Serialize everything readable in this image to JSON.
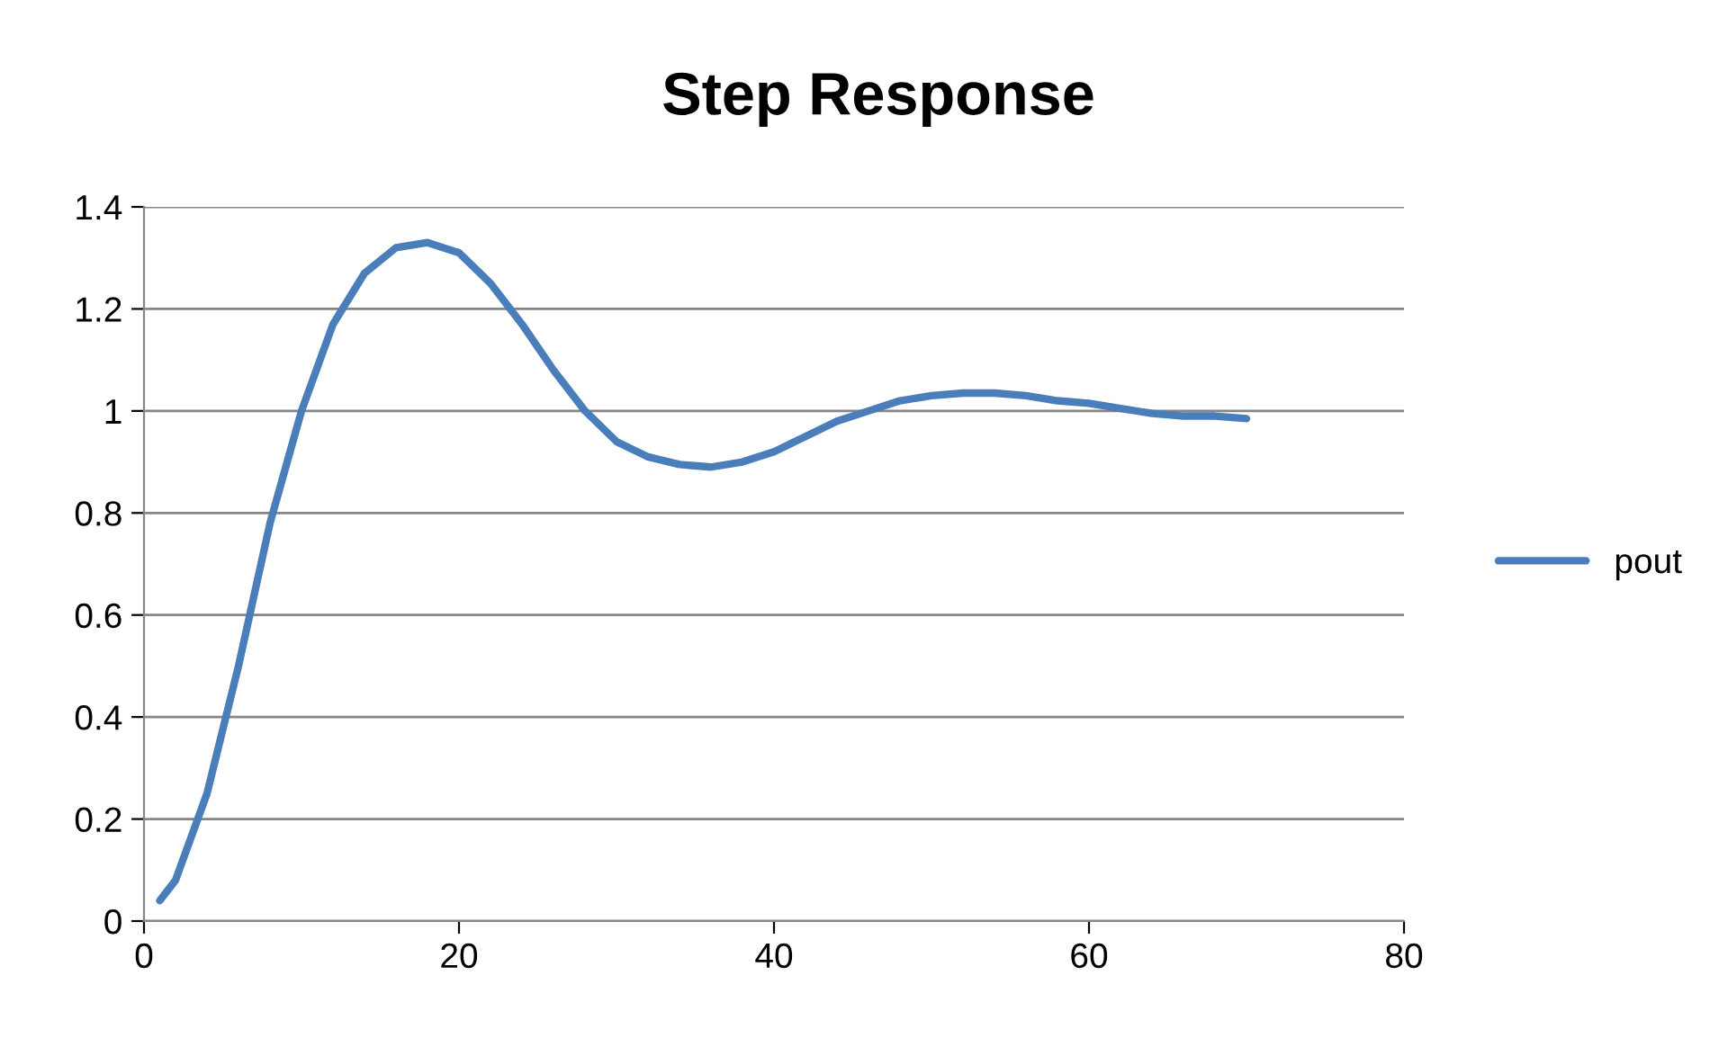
{
  "chart_data": {
    "type": "line",
    "title": "Step Response",
    "x": [
      1,
      2,
      4,
      6,
      8,
      10,
      12,
      14,
      16,
      18,
      20,
      22,
      24,
      26,
      28,
      30,
      32,
      34,
      36,
      38,
      40,
      42,
      44,
      46,
      48,
      50,
      52,
      54,
      56,
      58,
      60,
      62,
      64,
      66,
      68,
      70
    ],
    "series": [
      {
        "name": "pout",
        "color": "#4a7ebb",
        "values": [
          0.04,
          0.08,
          0.25,
          0.5,
          0.78,
          1.0,
          1.17,
          1.27,
          1.32,
          1.33,
          1.31,
          1.25,
          1.17,
          1.08,
          1.0,
          0.94,
          0.91,
          0.895,
          0.89,
          0.9,
          0.92,
          0.95,
          0.98,
          1.0,
          1.02,
          1.03,
          1.035,
          1.035,
          1.03,
          1.02,
          1.015,
          1.005,
          0.995,
          0.99,
          0.99,
          0.985
        ]
      }
    ],
    "xlim": [
      0,
      80
    ],
    "ylim": [
      0,
      1.4
    ],
    "xticks": [
      0,
      20,
      40,
      60,
      80
    ],
    "yticks": [
      0,
      0.2,
      0.4,
      0.6,
      0.8,
      1,
      1.2,
      1.4
    ],
    "grid": "y",
    "legend": "right",
    "marker": "none",
    "line_style": "solid"
  }
}
